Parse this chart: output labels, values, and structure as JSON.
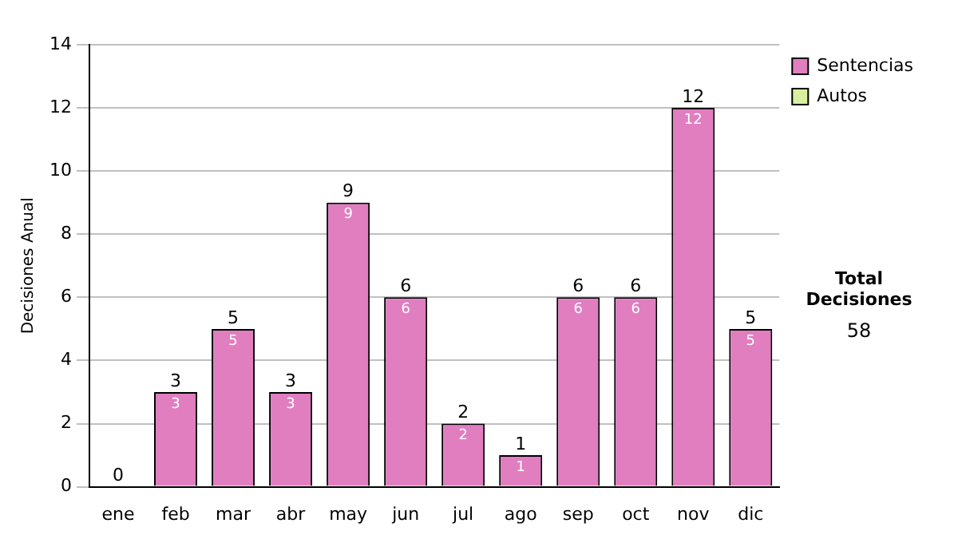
{
  "chart_data": {
    "type": "bar",
    "stacked": true,
    "ylabel": "Decisiones Anual",
    "categories": [
      "ene",
      "feb",
      "mar",
      "abr",
      "may",
      "jun",
      "jul",
      "ago",
      "sep",
      "oct",
      "nov",
      "dic"
    ],
    "series": [
      {
        "name": "Sentencias",
        "color": "#e07ec0",
        "values": [
          0,
          3,
          5,
          3,
          9,
          6,
          2,
          1,
          6,
          6,
          12,
          5
        ],
        "value_labels": [
          null,
          "3",
          "5",
          "3",
          "9",
          "6",
          "2",
          "1",
          "6",
          "6",
          "12",
          "5"
        ]
      },
      {
        "name": "Autos",
        "color": "#d8ef9f",
        "values": [
          0,
          0,
          0,
          0,
          0,
          0,
          0,
          0,
          0,
          0,
          0,
          0
        ]
      }
    ],
    "totals": [
      "0",
      "3",
      "5",
      "3",
      "9",
      "6",
      "2",
      "1",
      "6",
      "6",
      "12",
      "5"
    ],
    "ylim": [
      0,
      14
    ],
    "yticks": [
      0,
      2,
      4,
      6,
      8,
      10,
      12,
      14
    ],
    "grid": "y",
    "legend": "right",
    "annotations": [
      "Total Decisiones",
      "58"
    ]
  }
}
